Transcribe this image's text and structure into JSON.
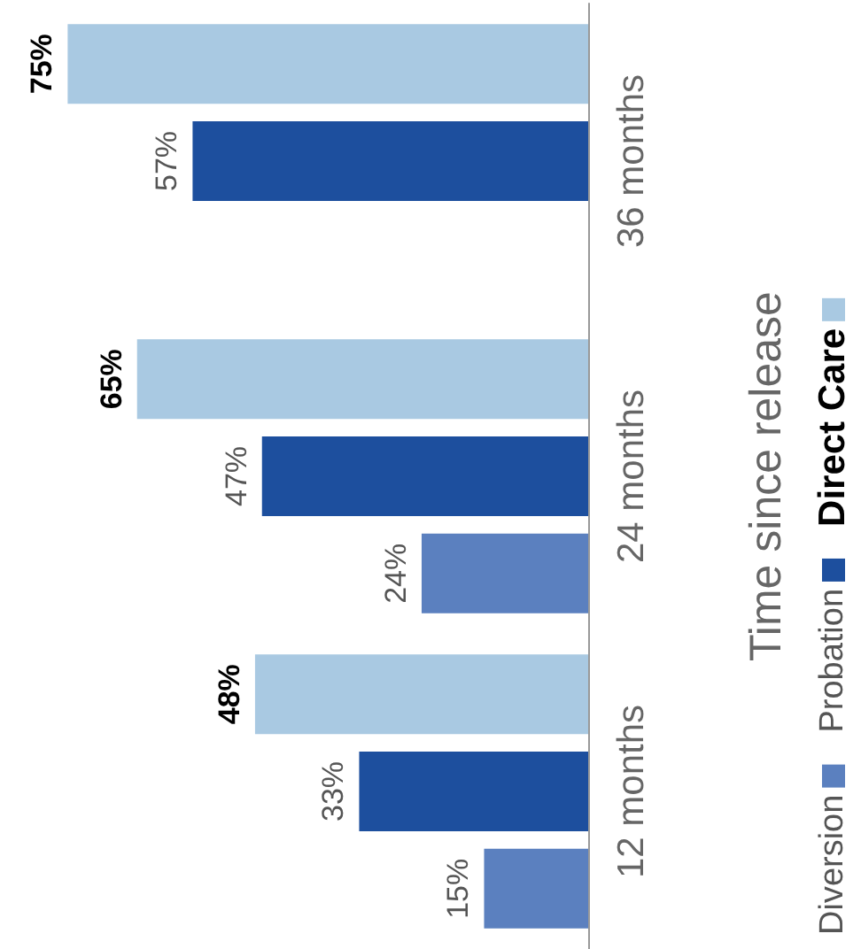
{
  "chart_data": {
    "type": "bar",
    "orientation": "horizontal",
    "ylabel": "Time since release",
    "categories": [
      "36 months",
      "24 months",
      "12 months"
    ],
    "series": [
      {
        "name": "Direct Care",
        "color": "#a9c9e2",
        "values": [
          75,
          65,
          48
        ],
        "value_labels": [
          "75%",
          "65%",
          "48%"
        ]
      },
      {
        "name": "Probation",
        "color": "#1d4f9e",
        "values": [
          57,
          47,
          33
        ],
        "value_labels": [
          "57%",
          "47%",
          "33%"
        ]
      },
      {
        "name": "Diversion",
        "color": "#5b80bf",
        "values": [
          null,
          24,
          15
        ],
        "value_labels": [
          null,
          "24%",
          "15%"
        ]
      }
    ],
    "legend": "right"
  }
}
